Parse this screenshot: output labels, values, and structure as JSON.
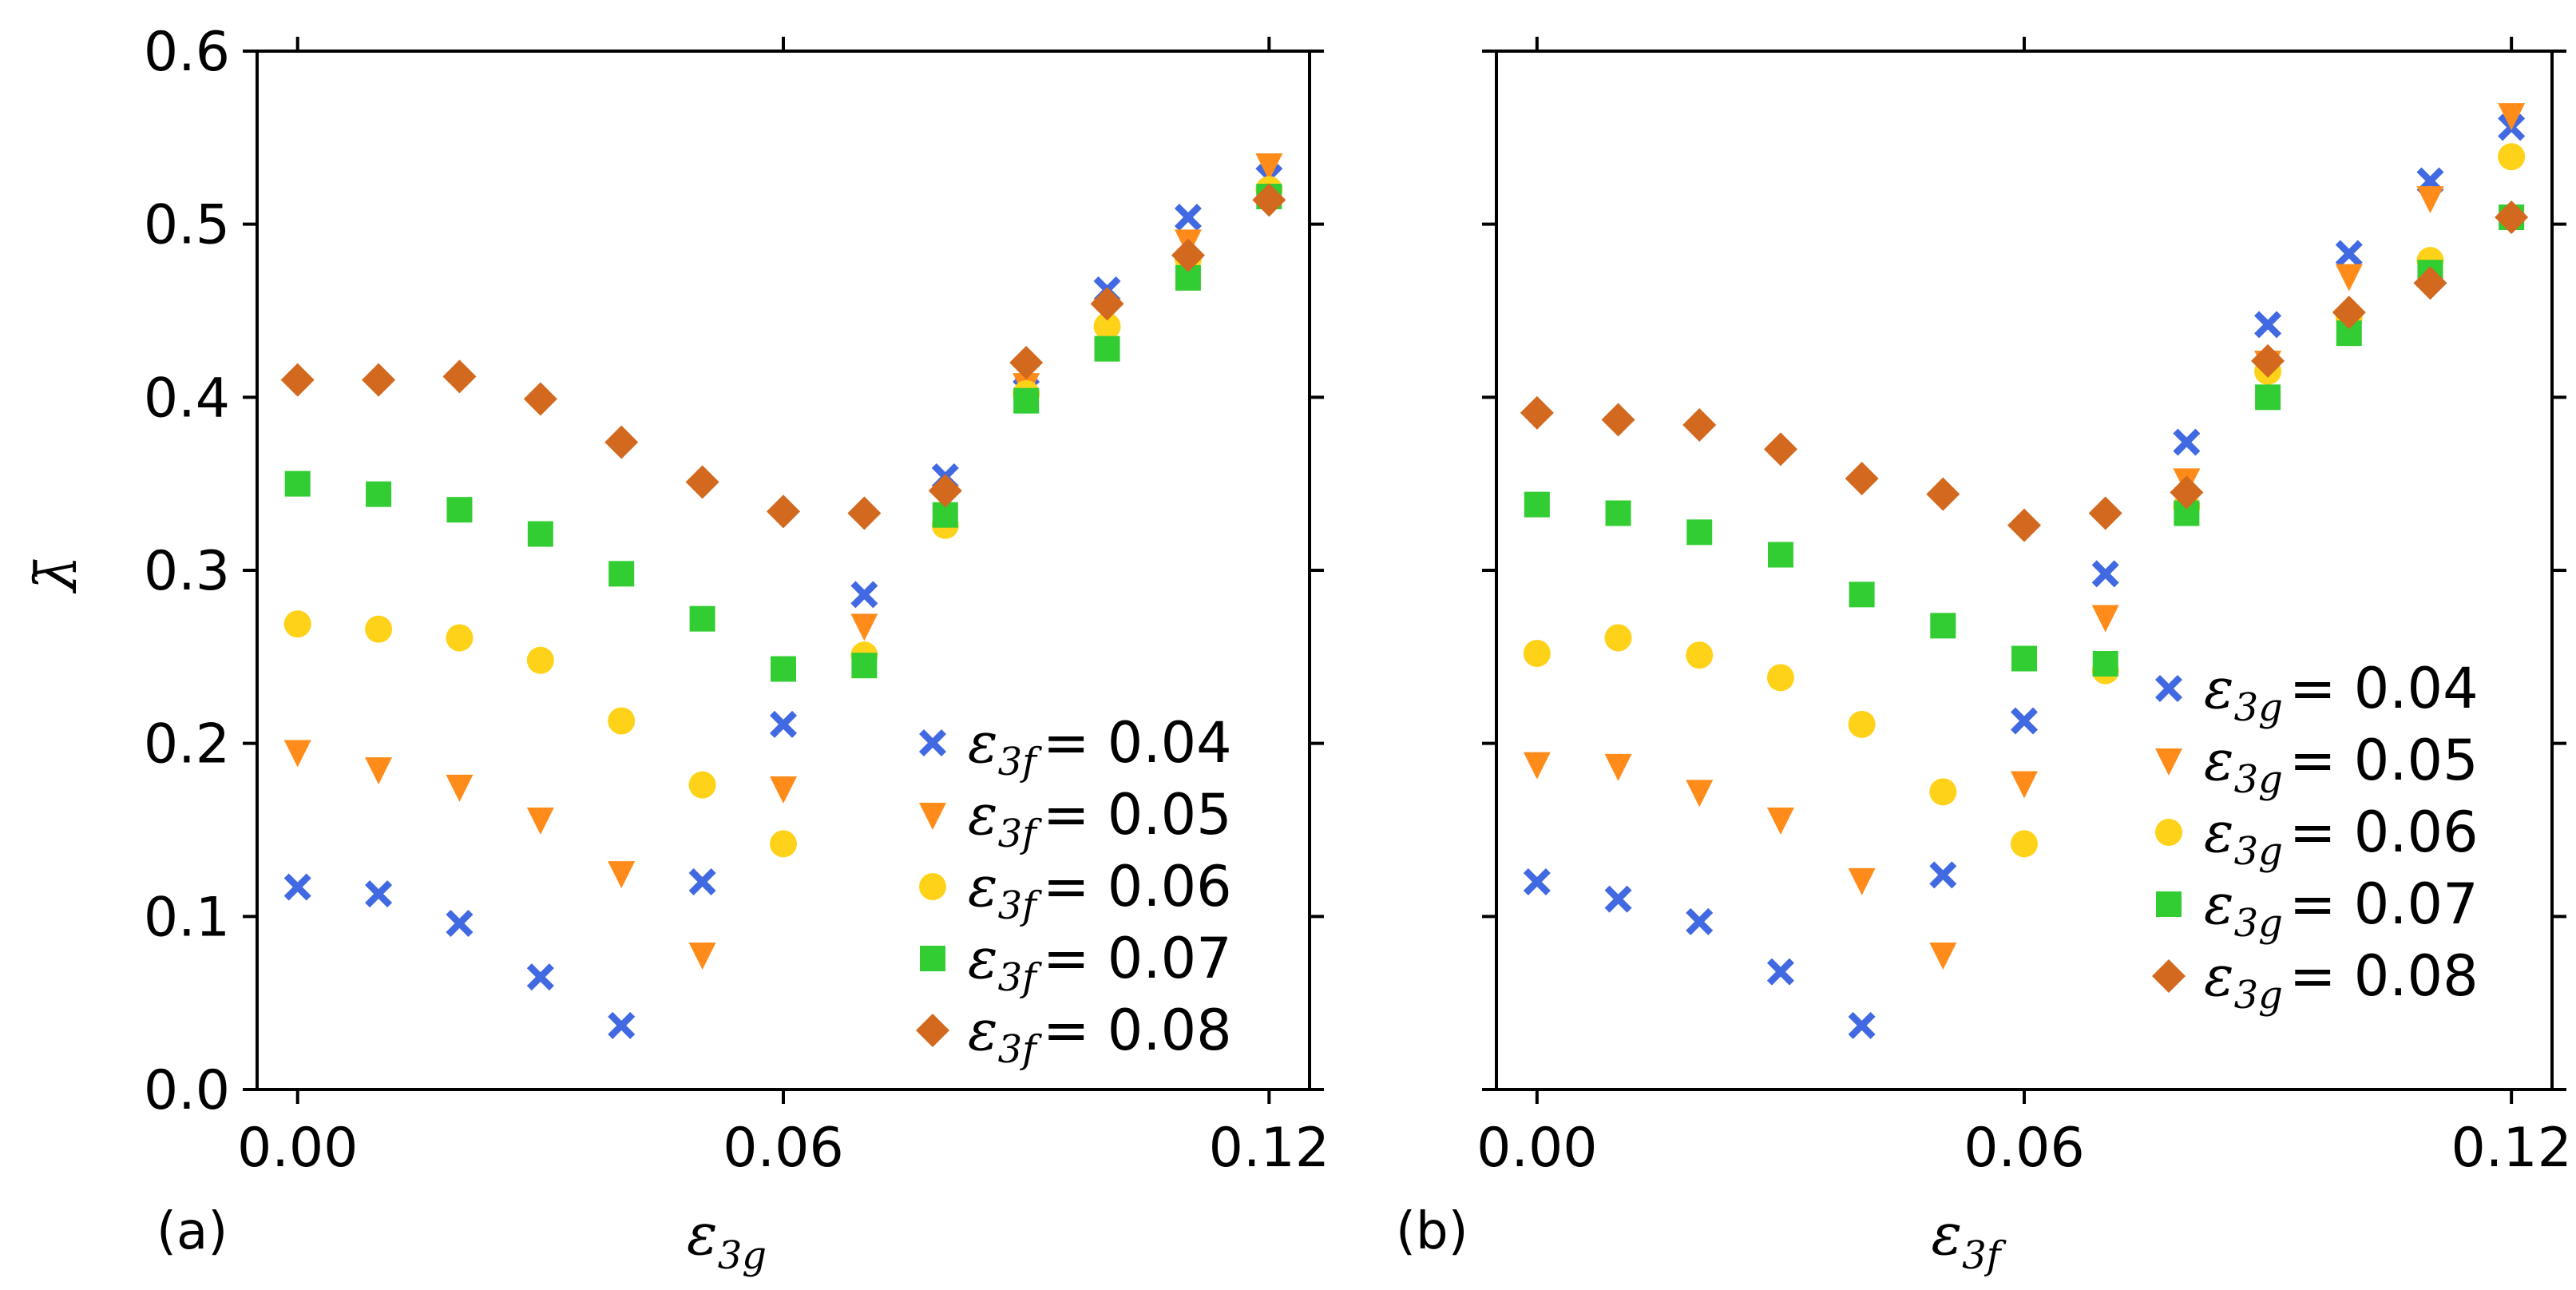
{
  "colors": {
    "s004": "#4169e1",
    "s005": "#ff8c1a",
    "s006": "#ffd21a",
    "s007": "#32cd32",
    "s008": "#d2691e"
  },
  "y_axis_label": "λ̄",
  "chart_data": [
    {
      "type": "scatter",
      "panel_label": "(a)",
      "xlabel_main": "ε",
      "xlabel_sub": "3g",
      "legend_sym": "ε",
      "legend_sub": "3f",
      "xlim": [
        -0.005,
        0.125
      ],
      "ylim": [
        0.0,
        0.6
      ],
      "xticks": [
        0.0,
        0.06,
        0.12
      ],
      "xtick_labels": [
        "0.00",
        "0.06",
        "0.12"
      ],
      "yticks": [
        0.0,
        0.1,
        0.2,
        0.3,
        0.4,
        0.5,
        0.6
      ],
      "ytick_labels": [
        "0.0",
        "0.1",
        "0.2",
        "0.3",
        "0.4",
        "0.5",
        "0.6"
      ],
      "legend_placement": "lower-right",
      "series": [
        {
          "key": "s004",
          "marker": "x",
          "label_value": "= 0.04",
          "x": [
            0.0,
            0.01,
            0.02,
            0.03,
            0.04,
            0.05,
            0.06,
            0.07,
            0.08,
            0.09,
            0.1,
            0.11,
            0.12
          ],
          "y": [
            0.117,
            0.113,
            0.096,
            0.065,
            0.037,
            0.12,
            0.211,
            0.286,
            0.354,
            0.414,
            0.462,
            0.504,
            0.527
          ]
        },
        {
          "key": "s005",
          "marker": "v",
          "label_value": "= 0.05",
          "x": [
            0.0,
            0.01,
            0.02,
            0.03,
            0.04,
            0.05,
            0.06,
            0.07,
            0.08,
            0.09,
            0.1,
            0.11,
            0.12
          ],
          "y": [
            0.195,
            0.185,
            0.175,
            0.156,
            0.125,
            0.078,
            0.174,
            0.268,
            0.342,
            0.407,
            0.45,
            0.49,
            0.534
          ]
        },
        {
          "key": "s006",
          "marker": "o",
          "label_value": "= 0.06",
          "x": [
            0.0,
            0.01,
            0.02,
            0.03,
            0.04,
            0.05,
            0.06,
            0.07,
            0.08,
            0.09,
            0.1,
            0.11,
            0.12
          ],
          "y": [
            0.269,
            0.266,
            0.261,
            0.248,
            0.213,
            0.176,
            0.142,
            0.251,
            0.326,
            0.402,
            0.441,
            0.48,
            0.52
          ]
        },
        {
          "key": "s007",
          "marker": "s",
          "label_value": "= 0.07",
          "x": [
            0.0,
            0.01,
            0.02,
            0.03,
            0.04,
            0.05,
            0.06,
            0.07,
            0.08,
            0.09,
            0.1,
            0.11,
            0.12
          ],
          "y": [
            0.35,
            0.344,
            0.335,
            0.321,
            0.298,
            0.272,
            0.243,
            0.245,
            0.332,
            0.398,
            0.428,
            0.469,
            0.516
          ]
        },
        {
          "key": "s008",
          "marker": "D",
          "label_value": "= 0.08",
          "x": [
            0.0,
            0.01,
            0.02,
            0.03,
            0.04,
            0.05,
            0.06,
            0.07,
            0.08,
            0.09,
            0.1,
            0.11,
            0.12
          ],
          "y": [
            0.41,
            0.41,
            0.412,
            0.399,
            0.374,
            0.351,
            0.334,
            0.333,
            0.346,
            0.42,
            0.454,
            0.482,
            0.514
          ]
        }
      ]
    },
    {
      "type": "scatter",
      "panel_label": "(b)",
      "xlabel_main": "ε",
      "xlabel_sub": "3f",
      "legend_sym": "ε",
      "legend_sub": "3g",
      "xlim": [
        -0.005,
        0.125
      ],
      "ylim": [
        0.0,
        0.6
      ],
      "xticks": [
        0.0,
        0.06,
        0.12
      ],
      "xtick_labels": [
        "0.00",
        "0.06",
        "0.12"
      ],
      "yticks": [
        0.0,
        0.1,
        0.2,
        0.3,
        0.4,
        0.5,
        0.6
      ],
      "ytick_labels": [],
      "legend_placement": "lower-right",
      "series": [
        {
          "key": "s004",
          "marker": "x",
          "label_value": "= 0.04",
          "x": [
            0.0,
            0.01,
            0.02,
            0.03,
            0.04,
            0.05,
            0.06,
            0.07,
            0.08,
            0.09,
            0.1,
            0.11,
            0.12
          ],
          "y": [
            0.12,
            0.11,
            0.097,
            0.068,
            0.037,
            0.124,
            0.213,
            0.298,
            0.374,
            0.442,
            0.483,
            0.525,
            0.556
          ]
        },
        {
          "key": "s005",
          "marker": "v",
          "label_value": "= 0.05",
          "x": [
            0.0,
            0.01,
            0.02,
            0.03,
            0.04,
            0.05,
            0.06,
            0.07,
            0.08,
            0.09,
            0.1,
            0.11,
            0.12
          ],
          "y": [
            0.188,
            0.187,
            0.172,
            0.156,
            0.121,
            0.078,
            0.177,
            0.273,
            0.352,
            0.42,
            0.47,
            0.515,
            0.563
          ]
        },
        {
          "key": "s006",
          "marker": "o",
          "label_value": "= 0.06",
          "x": [
            0.0,
            0.01,
            0.02,
            0.03,
            0.04,
            0.05,
            0.06,
            0.07,
            0.08,
            0.09,
            0.1,
            0.11,
            0.12
          ],
          "y": [
            0.252,
            0.261,
            0.251,
            0.238,
            0.211,
            0.172,
            0.142,
            0.242,
            0.337,
            0.415,
            0.446,
            0.479,
            0.539
          ]
        },
        {
          "key": "s007",
          "marker": "s",
          "label_value": "= 0.07",
          "x": [
            0.0,
            0.01,
            0.02,
            0.03,
            0.04,
            0.05,
            0.06,
            0.07,
            0.08,
            0.09,
            0.1,
            0.11,
            0.12
          ],
          "y": [
            0.338,
            0.333,
            0.322,
            0.309,
            0.286,
            0.268,
            0.249,
            0.246,
            0.333,
            0.4,
            0.437,
            0.472,
            0.504
          ]
        },
        {
          "key": "s008",
          "marker": "D",
          "label_value": "= 0.08",
          "x": [
            0.0,
            0.01,
            0.02,
            0.03,
            0.04,
            0.05,
            0.06,
            0.07,
            0.08,
            0.09,
            0.1,
            0.11,
            0.12
          ],
          "y": [
            0.391,
            0.387,
            0.384,
            0.37,
            0.353,
            0.344,
            0.326,
            0.333,
            0.345,
            0.421,
            0.449,
            0.466,
            0.504
          ]
        }
      ]
    }
  ]
}
